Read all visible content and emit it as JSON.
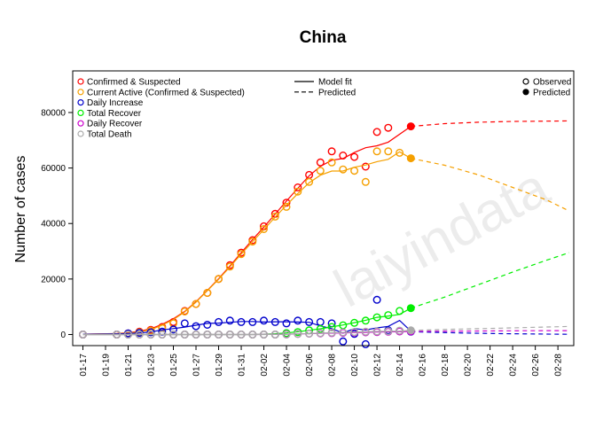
{
  "chart_data": {
    "type": "scatter",
    "title": "China",
    "xlabel": "",
    "ylabel": "Number of cases",
    "watermark": "laiyindata",
    "x_tick_labels": [
      "01-17",
      "01-19",
      "01-21",
      "01-23",
      "01-25",
      "01-27",
      "01-29",
      "01-31",
      "02-02",
      "02-04",
      "02-06",
      "02-08",
      "02-10",
      "02-12",
      "02-14",
      "02-16",
      "02-18",
      "02-20",
      "02-22",
      "02-24",
      "02-26",
      "02-28"
    ],
    "x_range": [
      -0.9,
      43.4
    ],
    "ylim": [
      -4000,
      95000
    ],
    "y_ticks": [
      0,
      20000,
      40000,
      60000,
      80000
    ],
    "y_tick_labels": [
      "0",
      "20000",
      "40000",
      "60000",
      "80000"
    ],
    "grid": false,
    "legend_series": {
      "placement": "top-left",
      "entries": [
        "Confirmed & Suspected",
        "Current Active (Confirmed & Suspected)",
        "Daily Increase",
        "Total Recover",
        "Daily Recover",
        "Total Death"
      ]
    },
    "legend_lines": {
      "placement": "top-center",
      "entries": [
        "Model fit",
        "Predicted"
      ]
    },
    "legend_points": {
      "placement": "top-right",
      "entries": [
        "Observed",
        "Predicted"
      ]
    },
    "predicted_day": 29,
    "series": [
      {
        "name": "Confirmed & Suspected",
        "color": "#ff0000",
        "x": [
          0,
          3,
          4,
          5,
          6,
          7,
          8,
          9,
          10,
          11,
          12,
          13,
          14,
          15,
          16,
          17,
          18,
          19,
          20,
          21,
          22,
          23,
          24,
          25,
          26,
          27
        ],
        "y": [
          0,
          0,
          400,
          1000,
          1700,
          2700,
          4500,
          8500,
          11000,
          15000,
          20000,
          25000,
          29500,
          34000,
          39000,
          43500,
          47500,
          53000,
          57500,
          62000,
          66000,
          64500,
          64000,
          60500,
          73000,
          74500
        ],
        "fit_end_y": 75000,
        "predicted_x": [
          29,
          32,
          35,
          38,
          41,
          43
        ],
        "predicted_y": [
          75000,
          76000,
          76500,
          76800,
          76900,
          77000
        ]
      },
      {
        "name": "Current Active (Confirmed & Suspected)",
        "color": "#f5a000",
        "x": [
          0,
          3,
          4,
          5,
          6,
          7,
          8,
          9,
          10,
          11,
          12,
          13,
          14,
          15,
          16,
          17,
          18,
          19,
          20,
          21,
          22,
          23,
          24,
          25,
          26,
          27,
          28
        ],
        "y": [
          0,
          0,
          300,
          800,
          1400,
          2300,
          4000,
          8300,
          11000,
          15000,
          20000,
          24500,
          29000,
          33500,
          38000,
          42500,
          46000,
          51500,
          55000,
          59000,
          62000,
          59500,
          59000,
          55000,
          66000,
          66000,
          65500
        ],
        "fit_end_y": 63500,
        "predicted_x": [
          29,
          32,
          35,
          38,
          41,
          43
        ],
        "predicted_y": [
          63500,
          61000,
          57500,
          53000,
          48500,
          44500
        ]
      },
      {
        "name": "Daily Increase",
        "color": "#0000cc",
        "x": [
          0,
          3,
          4,
          5,
          6,
          7,
          8,
          9,
          10,
          11,
          12,
          13,
          14,
          15,
          16,
          17,
          18,
          19,
          20,
          21,
          22,
          23,
          24,
          25,
          26,
          27,
          28
        ],
        "y": [
          0,
          0,
          400,
          600,
          800,
          1000,
          1800,
          4000,
          3000,
          3500,
          4500,
          5000,
          4500,
          4500,
          5000,
          4500,
          4000,
          5000,
          4500,
          4500,
          4000,
          -2500,
          200,
          -3500,
          12500,
          1500,
          1200
        ],
        "fit_end_y": 1200,
        "predicted_x": [
          29,
          33,
          37,
          41,
          43
        ],
        "predicted_y": [
          1000,
          600,
          300,
          150,
          100
        ]
      },
      {
        "name": "Total Recover",
        "color": "#00ee00",
        "x": [
          0,
          3,
          4,
          5,
          6,
          7,
          8,
          9,
          10,
          11,
          12,
          13,
          14,
          15,
          16,
          17,
          18,
          19,
          20,
          21,
          22,
          23,
          24,
          25,
          26,
          27,
          28
        ],
        "y": [
          0,
          0,
          0,
          0,
          0,
          0,
          0,
          0,
          0,
          0,
          0,
          0,
          0,
          0,
          0,
          0,
          500,
          900,
          1500,
          2000,
          2700,
          3300,
          4200,
          5000,
          6200,
          7000,
          8500
        ],
        "fit_end_y": 9500,
        "predicted_x": [
          29,
          32,
          35,
          38,
          41,
          43
        ],
        "predicted_y": [
          9500,
          13500,
          18000,
          22500,
          26800,
          29500
        ]
      },
      {
        "name": "Daily Recover",
        "color": "#cc00cc",
        "x": [
          0,
          3,
          4,
          5,
          6,
          7,
          8,
          9,
          10,
          11,
          12,
          13,
          14,
          15,
          16,
          17,
          18,
          19,
          20,
          21,
          22,
          23,
          24,
          25,
          26,
          27,
          28
        ],
        "y": [
          0,
          0,
          0,
          0,
          0,
          0,
          0,
          0,
          0,
          0,
          0,
          0,
          0,
          0,
          0,
          0,
          100,
          200,
          300,
          400,
          500,
          600,
          700,
          800,
          900,
          1000,
          1100
        ],
        "fit_end_y": 1100,
        "predicted_x": [
          29,
          34,
          39,
          43
        ],
        "predicted_y": [
          1100,
          1250,
          1350,
          1400
        ]
      },
      {
        "name": "Total Death",
        "color": "#aaaaaa",
        "x": [
          0,
          3,
          4,
          5,
          6,
          7,
          8,
          9,
          10,
          11,
          12,
          13,
          14,
          15,
          16,
          17,
          18,
          19,
          20,
          21,
          22,
          23,
          24,
          25,
          26,
          27,
          28
        ],
        "y": [
          0,
          0,
          0,
          0,
          0,
          0,
          0,
          0,
          0,
          0,
          0,
          0,
          0,
          0,
          0,
          0,
          0,
          200,
          350,
          500,
          650,
          800,
          900,
          1000,
          1100,
          1200,
          1400
        ],
        "fit_end_y": 1500,
        "predicted_x": [
          29,
          33,
          37,
          41,
          43
        ],
        "predicted_y": [
          1500,
          1900,
          2300,
          2700,
          2900
        ]
      }
    ]
  }
}
